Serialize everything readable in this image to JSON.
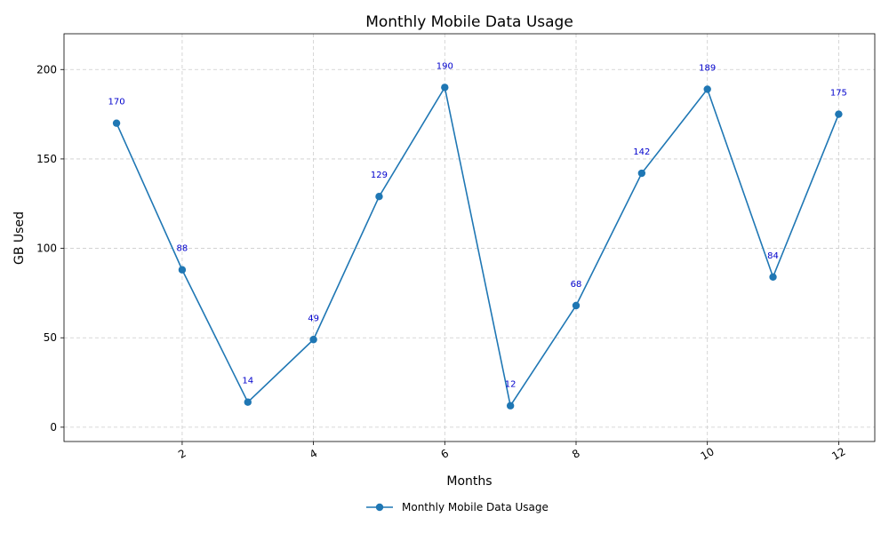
{
  "chart_data": {
    "type": "line",
    "title": "Monthly Mobile Data Usage",
    "xlabel": "Months",
    "ylabel": "GB Used",
    "xlim": [
      0.2,
      12.55
    ],
    "ylim": [
      -8,
      220
    ],
    "xticks": [
      2,
      4,
      6,
      8,
      10,
      12
    ],
    "yticks": [
      0,
      50,
      100,
      150,
      200
    ],
    "grid": true,
    "legend_position": "bottom-center",
    "series": [
      {
        "name": "Monthly Mobile Data Usage",
        "color": "#1f77b4",
        "x": [
          1,
          2,
          3,
          4,
          5,
          6,
          7,
          8,
          9,
          10,
          11,
          12
        ],
        "y": [
          170,
          88,
          14,
          49,
          129,
          190,
          12,
          68,
          142,
          189,
          84,
          175
        ]
      }
    ],
    "data_label_color": "#0000cc"
  }
}
